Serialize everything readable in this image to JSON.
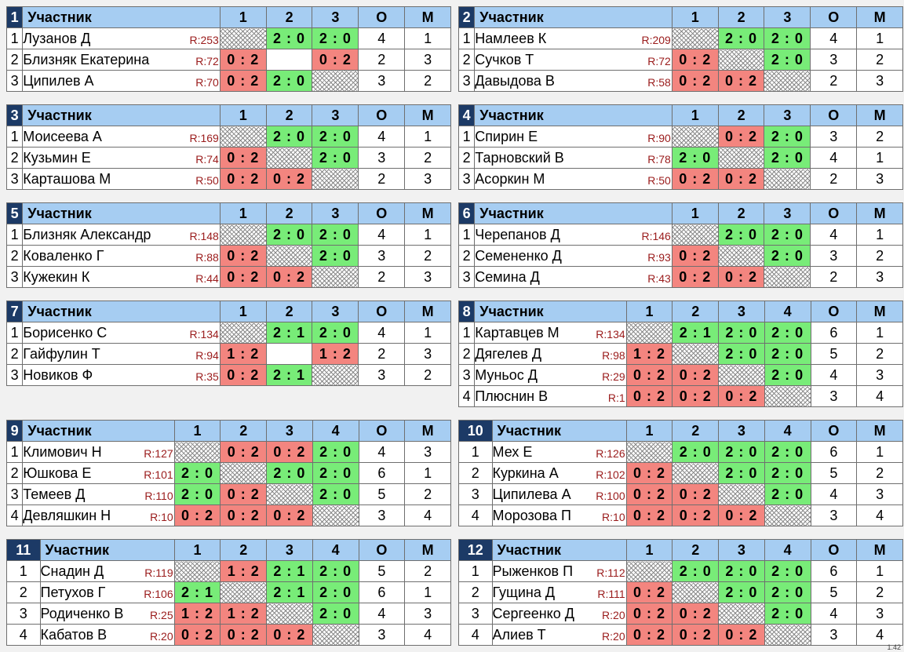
{
  "header_label": "Участник",
  "points_label": "О",
  "place_label": "М",
  "version": "1.42",
  "groups": [
    {
      "num": "1",
      "cols": [
        "1",
        "2",
        "3"
      ],
      "rows": [
        {
          "n": "1",
          "name": "Лузанов Д",
          "r": "R:253",
          "s": [
            "x",
            "2 : 0",
            "2 : 0"
          ],
          "o": "4",
          "m": "1"
        },
        {
          "n": "2",
          "name": "Близняк Екатерина",
          "r": "R:72",
          "s": [
            "0 : 2",
            "",
            "0 : 2"
          ],
          "o": "2",
          "m": "3"
        },
        {
          "n": "3",
          "name": "Ципилев А",
          "r": "R:70",
          "s": [
            "0 : 2",
            "2 : 0",
            "x"
          ],
          "o": "3",
          "m": "2"
        }
      ]
    },
    {
      "num": "2",
      "cols": [
        "1",
        "2",
        "3"
      ],
      "rows": [
        {
          "n": "1",
          "name": "Намлеев К",
          "r": "R:209",
          "s": [
            "x",
            "2 : 0",
            "2 : 0"
          ],
          "o": "4",
          "m": "1"
        },
        {
          "n": "2",
          "name": "Сучков Т",
          "r": "R:72",
          "s": [
            "0 : 2",
            "x",
            "2 : 0"
          ],
          "o": "3",
          "m": "2"
        },
        {
          "n": "3",
          "name": "Давыдова В",
          "r": "R:58",
          "s": [
            "0 : 2",
            "0 : 2",
            "x"
          ],
          "o": "2",
          "m": "3"
        }
      ]
    },
    {
      "num": "3",
      "cols": [
        "1",
        "2",
        "3"
      ],
      "rows": [
        {
          "n": "1",
          "name": "Моисеева А",
          "r": "R:169",
          "s": [
            "x",
            "2 : 0",
            "2 : 0"
          ],
          "o": "4",
          "m": "1"
        },
        {
          "n": "2",
          "name": "Кузьмин Е",
          "r": "R:74",
          "s": [
            "0 : 2",
            "x",
            "2 : 0"
          ],
          "o": "3",
          "m": "2"
        },
        {
          "n": "3",
          "name": "Карташова М",
          "r": "R:50",
          "s": [
            "0 : 2",
            "0 : 2",
            "x"
          ],
          "o": "2",
          "m": "3"
        }
      ]
    },
    {
      "num": "4",
      "cols": [
        "1",
        "2",
        "3"
      ],
      "rows": [
        {
          "n": "1",
          "name": "Спирин Е",
          "r": "R:90",
          "s": [
            "x",
            "0 : 2",
            "2 : 0"
          ],
          "o": "3",
          "m": "2"
        },
        {
          "n": "2",
          "name": "Тарновский В",
          "r": "R:78",
          "s": [
            "2 : 0",
            "x",
            "2 : 0"
          ],
          "o": "4",
          "m": "1"
        },
        {
          "n": "3",
          "name": "Асоркин М",
          "r": "R:50",
          "s": [
            "0 : 2",
            "0 : 2",
            "x"
          ],
          "o": "2",
          "m": "3"
        }
      ]
    },
    {
      "num": "5",
      "cols": [
        "1",
        "2",
        "3"
      ],
      "rows": [
        {
          "n": "1",
          "name": "Близняк Александр",
          "r": "R:148",
          "s": [
            "x",
            "2 : 0",
            "2 : 0"
          ],
          "o": "4",
          "m": "1"
        },
        {
          "n": "2",
          "name": "Коваленко Г",
          "r": "R:88",
          "s": [
            "0 : 2",
            "x",
            "2 : 0"
          ],
          "o": "3",
          "m": "2"
        },
        {
          "n": "3",
          "name": "Кужекин К",
          "r": "R:44",
          "s": [
            "0 : 2",
            "0 : 2",
            "x"
          ],
          "o": "2",
          "m": "3"
        }
      ]
    },
    {
      "num": "6",
      "cols": [
        "1",
        "2",
        "3"
      ],
      "rows": [
        {
          "n": "1",
          "name": "Черепанов Д",
          "r": "R:146",
          "s": [
            "x",
            "2 : 0",
            "2 : 0"
          ],
          "o": "4",
          "m": "1"
        },
        {
          "n": "2",
          "name": "Семененко Д",
          "r": "R:93",
          "s": [
            "0 : 2",
            "x",
            "2 : 0"
          ],
          "o": "3",
          "m": "2"
        },
        {
          "n": "3",
          "name": "Семина Д",
          "r": "R:43",
          "s": [
            "0 : 2",
            "0 : 2",
            "x"
          ],
          "o": "2",
          "m": "3"
        }
      ]
    },
    {
      "num": "7",
      "cols": [
        "1",
        "2",
        "3"
      ],
      "rows": [
        {
          "n": "1",
          "name": "Борисенко С",
          "r": "R:134",
          "s": [
            "x",
            "2 : 1",
            "2 : 0"
          ],
          "o": "4",
          "m": "1"
        },
        {
          "n": "2",
          "name": "Гайфулин Т",
          "r": "R:94",
          "s": [
            "1 : 2",
            "",
            "1 : 2"
          ],
          "o": "2",
          "m": "3"
        },
        {
          "n": "3",
          "name": "Новиков Ф",
          "r": "R:35",
          "s": [
            "0 : 2",
            "2 : 1",
            "x"
          ],
          "o": "3",
          "m": "2"
        }
      ]
    },
    {
      "num": "8",
      "cols": [
        "1",
        "2",
        "3",
        "4"
      ],
      "rows": [
        {
          "n": "1",
          "name": "Картавцев М",
          "r": "R:134",
          "s": [
            "x",
            "2 : 1",
            "2 : 0",
            "2 : 0"
          ],
          "o": "6",
          "m": "1"
        },
        {
          "n": "2",
          "name": "Дягелев Д",
          "r": "R:98",
          "s": [
            "1 : 2",
            "x",
            "2 : 0",
            "2 : 0"
          ],
          "o": "5",
          "m": "2"
        },
        {
          "n": "3",
          "name": "Муньос Д",
          "r": "R:29",
          "s": [
            "0 : 2",
            "0 : 2",
            "x",
            "2 : 0"
          ],
          "o": "4",
          "m": "3"
        },
        {
          "n": "4",
          "name": "Плюснин В",
          "r": "R:1",
          "s": [
            "0 : 2",
            "0 : 2",
            "0 : 2",
            "x"
          ],
          "o": "3",
          "m": "4"
        }
      ]
    },
    {
      "num": "9",
      "cols": [
        "1",
        "2",
        "3",
        "4"
      ],
      "rows": [
        {
          "n": "1",
          "name": "Климович Н",
          "r": "R:127",
          "s": [
            "x",
            "0 : 2",
            "0 : 2",
            "2 : 0"
          ],
          "o": "4",
          "m": "3"
        },
        {
          "n": "2",
          "name": "Юшкова Е",
          "r": "R:101",
          "s": [
            "2 : 0",
            "x",
            "2 : 0",
            "2 : 0"
          ],
          "o": "6",
          "m": "1"
        },
        {
          "n": "3",
          "name": "Темеев Д",
          "r": "R:110",
          "s": [
            "2 : 0",
            "0 : 2",
            "x",
            "2 : 0"
          ],
          "o": "5",
          "m": "2"
        },
        {
          "n": "4",
          "name": "Девляшкин Н",
          "r": "R:10",
          "s": [
            "0 : 2",
            "0 : 2",
            "0 : 2",
            "x"
          ],
          "o": "3",
          "m": "4"
        }
      ]
    },
    {
      "num": "10",
      "cols": [
        "1",
        "2",
        "3",
        "4"
      ],
      "rows": [
        {
          "n": "1",
          "name": "Мех Е",
          "r": "R:126",
          "s": [
            "x",
            "2 : 0",
            "2 : 0",
            "2 : 0"
          ],
          "o": "6",
          "m": "1"
        },
        {
          "n": "2",
          "name": "Куркина А",
          "r": "R:102",
          "s": [
            "0 : 2",
            "x",
            "2 : 0",
            "2 : 0"
          ],
          "o": "5",
          "m": "2"
        },
        {
          "n": "3",
          "name": "Ципилева А",
          "r": "R:100",
          "s": [
            "0 : 2",
            "0 : 2",
            "x",
            "2 : 0"
          ],
          "o": "4",
          "m": "3"
        },
        {
          "n": "4",
          "name": "Морозова П",
          "r": "R:10",
          "s": [
            "0 : 2",
            "0 : 2",
            "0 : 2",
            "x"
          ],
          "o": "3",
          "m": "4"
        }
      ]
    },
    {
      "num": "11",
      "cols": [
        "1",
        "2",
        "3",
        "4"
      ],
      "rows": [
        {
          "n": "1",
          "name": "Снадин Д",
          "r": "R:119",
          "s": [
            "x",
            "1 : 2",
            "2 : 1",
            "2 : 0"
          ],
          "o": "5",
          "m": "2"
        },
        {
          "n": "2",
          "name": "Петухов Г",
          "r": "R:106",
          "s": [
            "2 : 1",
            "x",
            "2 : 1",
            "2 : 0"
          ],
          "o": "6",
          "m": "1"
        },
        {
          "n": "3",
          "name": "Родиченко В",
          "r": "R:25",
          "s": [
            "1 : 2",
            "1 : 2",
            "x",
            "2 : 0"
          ],
          "o": "4",
          "m": "3"
        },
        {
          "n": "4",
          "name": "Кабатов В",
          "r": "R:20",
          "s": [
            "0 : 2",
            "0 : 2",
            "0 : 2",
            "x"
          ],
          "o": "3",
          "m": "4"
        }
      ]
    },
    {
      "num": "12",
      "cols": [
        "1",
        "2",
        "3",
        "4"
      ],
      "rows": [
        {
          "n": "1",
          "name": "Рыженков П",
          "r": "R:112",
          "s": [
            "x",
            "2 : 0",
            "2 : 0",
            "2 : 0"
          ],
          "o": "6",
          "m": "1"
        },
        {
          "n": "2",
          "name": "Гущина Д",
          "r": "R:111",
          "s": [
            "0 : 2",
            "x",
            "2 : 0",
            "2 : 0"
          ],
          "o": "5",
          "m": "2"
        },
        {
          "n": "3",
          "name": "Сергеенко Д",
          "r": "R:20",
          "s": [
            "0 : 2",
            "0 : 2",
            "x",
            "2 : 0"
          ],
          "o": "4",
          "m": "3"
        },
        {
          "n": "4",
          "name": "Алиев Т",
          "r": "R:20",
          "s": [
            "0 : 2",
            "0 : 2",
            "0 : 2",
            "x"
          ],
          "o": "3",
          "m": "4"
        }
      ]
    }
  ]
}
